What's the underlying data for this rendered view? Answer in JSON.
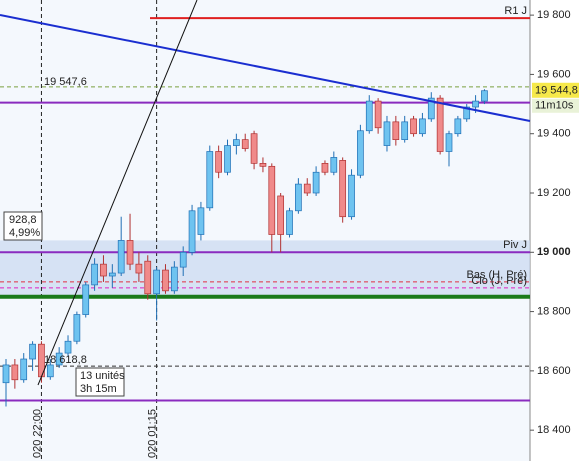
{
  "chart_data": {
    "type": "candlestick",
    "categories": [
      null,
      null,
      null,
      null,
      "020 22:00",
      null,
      null,
      null,
      null,
      null,
      null,
      null,
      null,
      null,
      null,
      null,
      null,
      "020 01:15",
      null,
      null,
      null,
      null,
      null,
      null,
      null,
      null,
      null,
      null,
      null,
      null,
      null,
      null,
      null,
      null,
      null,
      null,
      null,
      null,
      null,
      null,
      null,
      null,
      null,
      null,
      null,
      null,
      null,
      null,
      null,
      null,
      null,
      null,
      null,
      null,
      null
    ],
    "open": [
      18560,
      18620,
      18570,
      18640,
      18690,
      18580,
      18620,
      18660,
      18700,
      18790,
      18890,
      18960,
      18920,
      18930,
      19040,
      18960,
      18970,
      18860,
      18940,
      18870,
      18950,
      19000,
      19060,
      19150,
      19340,
      19270,
      19360,
      19380,
      19400,
      19300,
      19290,
      19190,
      19060,
      19140,
      19230,
      19200,
      19300,
      19270,
      19310,
      19120,
      19260,
      19410,
      19510,
      19360,
      19440,
      19380,
      19450,
      19400,
      19450,
      19520,
      19340,
      19400,
      19450,
      19490,
      19510
    ],
    "high": [
      18640,
      18640,
      18660,
      18700,
      18700,
      18640,
      18680,
      18720,
      18800,
      18900,
      18980,
      18990,
      18960,
      19120,
      19130,
      19000,
      18990,
      18950,
      18960,
      18970,
      19020,
      19160,
      19170,
      19360,
      19360,
      19380,
      19400,
      19400,
      19410,
      19320,
      19300,
      19200,
      19150,
      19250,
      19250,
      19290,
      19310,
      19340,
      19320,
      19280,
      19430,
      19530,
      19520,
      19460,
      19460,
      19460,
      19460,
      19470,
      19540,
      19530,
      19410,
      19460,
      19500,
      19530,
      19550
    ],
    "low": [
      18480,
      18540,
      18560,
      18600,
      18560,
      18570,
      18610,
      18650,
      18690,
      18780,
      18870,
      18900,
      18880,
      18920,
      18940,
      18900,
      18840,
      18770,
      18860,
      18860,
      18920,
      18990,
      19040,
      19140,
      19250,
      19260,
      19330,
      19340,
      19280,
      19270,
      19000,
      19000,
      19050,
      19130,
      19190,
      19190,
      19260,
      19260,
      19100,
      19110,
      19250,
      19400,
      19400,
      19340,
      19360,
      19370,
      19390,
      19390,
      19440,
      19330,
      19290,
      19390,
      19440,
      19470,
      19500
    ],
    "close": [
      18620,
      18570,
      18640,
      18690,
      18580,
      18620,
      18660,
      18700,
      18790,
      18890,
      18960,
      18920,
      18930,
      19040,
      18960,
      18930,
      18860,
      18940,
      18870,
      18950,
      19000,
      19140,
      19150,
      19340,
      19270,
      19360,
      19380,
      19350,
      19300,
      19290,
      19060,
      19060,
      19140,
      19230,
      19200,
      19270,
      19270,
      19320,
      19120,
      19260,
      19410,
      19510,
      19420,
      19440,
      19380,
      19440,
      19400,
      19450,
      19520,
      19340,
      19400,
      19450,
      19490,
      19510,
      19545
    ],
    "up_color": "#6ec3f0",
    "down_color": "#f08a8a",
    "ylim": [
      18296,
      19851
    ],
    "yticks": [
      {
        "value": 18400,
        "label": "18 400"
      },
      {
        "value": 18600,
        "label": "18 600"
      },
      {
        "value": 18800,
        "label": "18 800"
      },
      {
        "value": 19000,
        "label": "19 000"
      },
      {
        "value": 19200,
        "label": "19 200"
      },
      {
        "value": 19400,
        "label": "19 400"
      },
      {
        "value": 19600,
        "label": "19 600"
      },
      {
        "value": 19800,
        "label": "19 800"
      }
    ],
    "levels": [
      {
        "name": "R1 J",
        "value": 19790,
        "color": "#e02020"
      },
      {
        "name": "Piv J",
        "value": 19000,
        "color": "#8a2bbf"
      },
      {
        "name": "Bas (H, Pré)",
        "value": 18900,
        "color": "#e03040"
      },
      {
        "name": "Clo (J, Pré)",
        "value": 18880,
        "color": "#e020c0"
      },
      {
        "value": 18850,
        "color": "#1a7a1a"
      },
      {
        "value": 19505,
        "color": "#8a2bbf"
      },
      {
        "value": 18500,
        "color": "#8a2bbf"
      },
      {
        "value": 19558,
        "color": "#7aa040"
      },
      {
        "value": 18616,
        "color": "#333333"
      }
    ],
    "price": {
      "value": 19544.8,
      "label": "19 544,8",
      "timer": "11m10s"
    },
    "annotations": {
      "high_label": "19 547,6",
      "low_label": "18 618,8",
      "range": [
        "928,8",
        "4,99%"
      ],
      "duration": [
        "13 unités",
        "3h 15m"
      ]
    }
  }
}
